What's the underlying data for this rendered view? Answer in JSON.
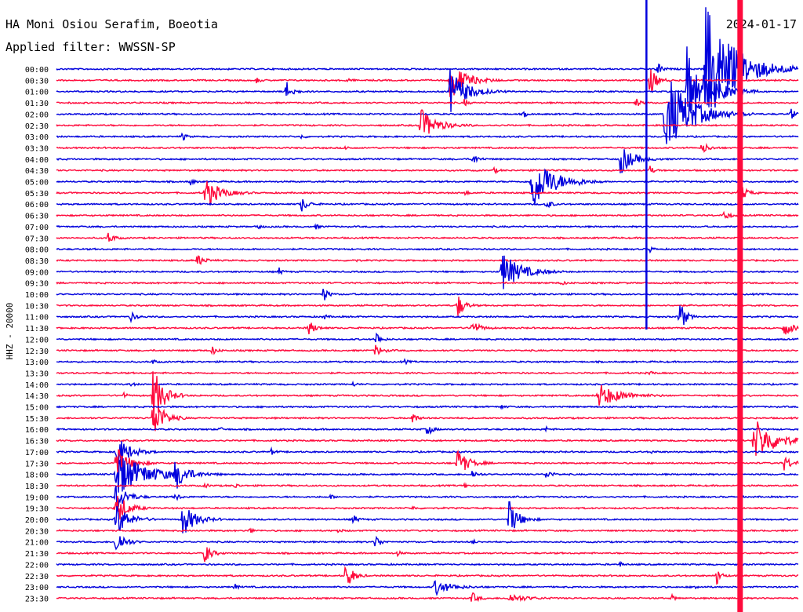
{
  "header": {
    "station": "HA Moni Osiou Serafim, Boeotia",
    "date": "2024-01-17",
    "filter": "Applied filter: WWSSN-SP"
  },
  "axis": {
    "ylabel": "HHZ - 20000"
  },
  "colors": {
    "trace_a": "#0000dd",
    "trace_b": "#ff0a3c",
    "background": "#ffffff",
    "text": "#000000"
  },
  "chart_data": {
    "type": "line",
    "title": "HA Moni Osiou Serafim, Boeotia",
    "subtitle": "Applied filter: WWSSN-SP",
    "ylabel": "HHZ - 20000",
    "xlabel": "",
    "grid": false,
    "tick_labels": [
      "00:00",
      "00:30",
      "01:00",
      "01:30",
      "02:00",
      "02:30",
      "03:00",
      "03:30",
      "04:00",
      "04:30",
      "05:00",
      "05:30",
      "06:00",
      "06:30",
      "07:00",
      "07:30",
      "08:00",
      "08:30",
      "09:00",
      "09:30",
      "10:00",
      "10:30",
      "11:00",
      "11:30",
      "12:00",
      "12:30",
      "13:00",
      "13:30",
      "14:00",
      "14:30",
      "15:00",
      "15:30",
      "16:00",
      "16:30",
      "17:00",
      "17:30",
      "18:00",
      "18:30",
      "19:00",
      "19:30",
      "20:00",
      "20:30",
      "21:00",
      "21:30",
      "22:00",
      "22:30",
      "23:00",
      "23:30"
    ],
    "series": [
      {
        "row": 0,
        "events": [
          [
            0.81,
            10,
            0.4
          ],
          [
            0.875,
            80,
            3
          ]
        ]
      },
      {
        "row": 1,
        "events": [
          [
            0.27,
            4,
            0.3
          ],
          [
            0.39,
            4,
            0.3
          ],
          [
            0.53,
            26,
            1.5
          ],
          [
            0.8,
            20,
            0.6
          ]
        ]
      },
      {
        "row": 2,
        "events": [
          [
            0.31,
            16,
            0.5
          ],
          [
            0.53,
            30,
            1.6
          ],
          [
            0.85,
            60,
            2
          ]
        ]
      },
      {
        "row": 3,
        "events": [
          [
            0.55,
            5,
            0.3
          ],
          [
            0.78,
            8,
            0.4
          ]
        ]
      },
      {
        "row": 4,
        "events": [
          [
            0.63,
            4,
            0.3
          ],
          [
            0.82,
            55,
            2.5
          ],
          [
            0.99,
            8,
            0.4
          ]
        ]
      },
      {
        "row": 5,
        "events": [
          [
            0.49,
            22,
            1.5
          ]
        ]
      },
      {
        "row": 6,
        "events": [
          [
            0.17,
            6,
            0.3
          ],
          [
            0.33,
            3,
            0.3
          ]
        ]
      },
      {
        "row": 7,
        "events": [
          [
            0.39,
            3,
            0.3
          ],
          [
            0.87,
            8,
            0.6
          ]
        ]
      },
      {
        "row": 8,
        "events": [
          [
            0.56,
            8,
            0.5
          ],
          [
            0.76,
            20,
            1.2
          ]
        ]
      },
      {
        "row": 9,
        "events": [
          [
            0.59,
            4,
            0.3
          ],
          [
            0.8,
            6,
            0.3
          ]
        ]
      },
      {
        "row": 10,
        "events": [
          [
            0.18,
            6,
            0.3
          ],
          [
            0.64,
            40,
            2
          ],
          [
            0.7,
            4,
            0.3
          ]
        ]
      },
      {
        "row": 11,
        "events": [
          [
            0.2,
            20,
            1.4
          ],
          [
            0.55,
            4,
            0.3
          ],
          [
            0.92,
            16,
            0.6
          ]
        ]
      },
      {
        "row": 12,
        "events": [
          [
            0.33,
            10,
            0.6
          ],
          [
            0.66,
            10,
            0.4
          ]
        ]
      },
      {
        "row": 13,
        "events": [
          [
            0.9,
            8,
            0.4
          ]
        ]
      },
      {
        "row": 14,
        "events": [
          [
            0.27,
            5,
            0.3
          ],
          [
            0.35,
            3,
            0.3
          ]
        ]
      },
      {
        "row": 15,
        "events": [
          [
            0.07,
            8,
            0.5
          ]
        ]
      },
      {
        "row": 16,
        "events": [
          [
            0.8,
            4,
            0.3
          ]
        ]
      },
      {
        "row": 17,
        "events": [
          [
            0.19,
            8,
            0.6
          ],
          [
            0.4,
            3,
            0.3
          ]
        ]
      },
      {
        "row": 18,
        "events": [
          [
            0.3,
            5,
            0.3
          ],
          [
            0.6,
            26,
            1.8
          ]
        ]
      },
      {
        "row": 19,
        "events": [
          [
            0.68,
            4,
            0.3
          ]
        ]
      },
      {
        "row": 20,
        "events": [
          [
            0.36,
            10,
            0.4
          ]
        ]
      },
      {
        "row": 21,
        "events": [
          [
            0.54,
            18,
            0.6
          ]
        ]
      },
      {
        "row": 22,
        "events": [
          [
            0.1,
            6,
            0.5
          ],
          [
            0.36,
            4,
            0.3
          ],
          [
            0.84,
            26,
            0.5
          ]
        ]
      },
      {
        "row": 23,
        "events": [
          [
            0.34,
            10,
            0.6
          ],
          [
            0.56,
            10,
            0.7
          ],
          [
            0.98,
            10,
            1
          ]
        ]
      },
      {
        "row": 24,
        "events": [
          [
            0.43,
            12,
            0.4
          ]
        ]
      },
      {
        "row": 25,
        "events": [
          [
            0.21,
            6,
            0.4
          ],
          [
            0.43,
            8,
            0.6
          ]
        ]
      },
      {
        "row": 26,
        "events": [
          [
            0.13,
            3,
            0.3
          ],
          [
            0.47,
            3,
            0.3
          ]
        ]
      },
      {
        "row": 27,
        "events": [
          [
            0.8,
            3,
            0.3
          ]
        ]
      },
      {
        "row": 28,
        "events": [
          [
            0.1,
            3,
            0.3
          ],
          [
            0.4,
            3,
            0.3
          ]
        ]
      },
      {
        "row": 29,
        "events": [
          [
            0.09,
            4,
            0.3
          ],
          [
            0.13,
            40,
            1
          ],
          [
            0.73,
            16,
            2
          ]
        ]
      },
      {
        "row": 30,
        "events": [
          [
            0.6,
            3,
            0.3
          ]
        ]
      },
      {
        "row": 31,
        "events": [
          [
            0.13,
            30,
            1
          ],
          [
            0.48,
            8,
            0.4
          ]
        ]
      },
      {
        "row": 32,
        "events": [
          [
            0.22,
            3,
            0.3
          ],
          [
            0.5,
            10,
            0.4
          ],
          [
            0.66,
            3,
            0.3
          ]
        ]
      },
      {
        "row": 33,
        "events": [
          [
            0.94,
            30,
            2
          ]
        ]
      },
      {
        "row": 34,
        "events": [
          [
            0.08,
            24,
            1.2
          ],
          [
            0.29,
            4,
            0.3
          ],
          [
            0.8,
            3,
            0.3
          ]
        ]
      },
      {
        "row": 35,
        "events": [
          [
            0.08,
            22,
            1.2
          ],
          [
            0.54,
            20,
            1
          ],
          [
            0.98,
            10,
            0.8
          ]
        ]
      },
      {
        "row": 36,
        "events": [
          [
            0.08,
            30,
            3
          ],
          [
            0.16,
            18,
            1
          ],
          [
            0.56,
            6,
            0.5
          ],
          [
            0.66,
            6,
            0.5
          ]
        ]
      },
      {
        "row": 37,
        "events": [
          [
            0.2,
            3,
            0.3
          ],
          [
            0.24,
            4,
            0.3
          ],
          [
            0.55,
            3,
            0.3
          ]
        ]
      },
      {
        "row": 38,
        "events": [
          [
            0.08,
            20,
            1
          ],
          [
            0.16,
            6,
            0.4
          ],
          [
            0.37,
            3,
            0.3
          ]
        ]
      },
      {
        "row": 39,
        "events": [
          [
            0.08,
            24,
            1
          ],
          [
            0.48,
            3,
            0.3
          ]
        ]
      },
      {
        "row": 40,
        "events": [
          [
            0.08,
            22,
            1.2
          ],
          [
            0.17,
            22,
            1.2
          ],
          [
            0.4,
            6,
            0.4
          ],
          [
            0.61,
            24,
            0.9
          ]
        ]
      },
      {
        "row": 41,
        "events": [
          [
            0.26,
            4,
            0.3
          ],
          [
            0.38,
            3,
            0.3
          ]
        ]
      },
      {
        "row": 42,
        "events": [
          [
            0.08,
            18,
            0.8
          ],
          [
            0.43,
            12,
            0.4
          ],
          [
            0.56,
            4,
            0.3
          ]
        ]
      },
      {
        "row": 43,
        "events": [
          [
            0.2,
            14,
            0.6
          ],
          [
            0.46,
            3,
            0.3
          ]
        ]
      },
      {
        "row": 44,
        "events": [
          [
            0.76,
            3,
            0.3
          ]
        ]
      },
      {
        "row": 45,
        "events": [
          [
            0.39,
            22,
            0.6
          ],
          [
            0.89,
            12,
            0.4
          ]
        ]
      },
      {
        "row": 46,
        "events": [
          [
            0.24,
            4,
            0.3
          ],
          [
            0.51,
            10,
            1.5
          ],
          [
            0.86,
            4,
            0.3
          ]
        ]
      },
      {
        "row": 47,
        "events": [
          [
            0.56,
            8,
            0.5
          ],
          [
            0.61,
            6,
            1.5
          ],
          [
            0.83,
            4,
            0.3
          ]
        ]
      }
    ],
    "big_event": {
      "row_start": 0,
      "row_end": 47,
      "position": 0.92
    }
  }
}
